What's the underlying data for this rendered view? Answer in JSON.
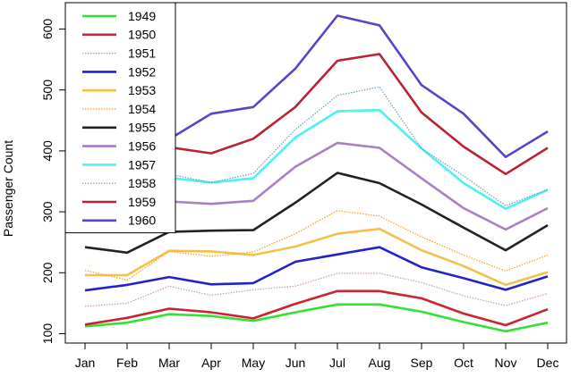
{
  "chart_data": {
    "type": "line",
    "title": "",
    "xlabel": "",
    "ylabel": "Passenger Count",
    "categories": [
      "Jan",
      "Feb",
      "Mar",
      "Apr",
      "May",
      "Jun",
      "Jul",
      "Aug",
      "Sep",
      "Oct",
      "Nov",
      "Dec"
    ],
    "y_ticks": [
      100,
      200,
      300,
      400,
      500,
      600
    ],
    "ylim": [
      95,
      625
    ],
    "grid": false,
    "legend_position": "top-left",
    "series": [
      {
        "name": "1949",
        "color": "#33e033",
        "style": "solid",
        "values": [
          112,
          118,
          132,
          129,
          121,
          135,
          148,
          148,
          136,
          119,
          104,
          118
        ]
      },
      {
        "name": "1950",
        "color": "#cc2233",
        "style": "solid",
        "values": [
          115,
          126,
          141,
          135,
          125,
          149,
          170,
          170,
          158,
          133,
          114,
          140
        ]
      },
      {
        "name": "1951",
        "color": "#c8a08c",
        "style": "dotted",
        "values": [
          145,
          150,
          178,
          163,
          172,
          178,
          199,
          199,
          184,
          162,
          146,
          166
        ]
      },
      {
        "name": "1952",
        "color": "#2222cc",
        "style": "solid",
        "values": [
          171,
          180,
          193,
          181,
          183,
          218,
          230,
          242,
          209,
          191,
          172,
          194
        ]
      },
      {
        "name": "1953",
        "color": "#f5c04a",
        "style": "solid",
        "values": [
          196,
          196,
          236,
          235,
          229,
          243,
          264,
          272,
          237,
          211,
          180,
          201
        ]
      },
      {
        "name": "1954",
        "color": "#ff9a1a",
        "style": "dotted",
        "values": [
          204,
          188,
          235,
          227,
          234,
          264,
          302,
          293,
          259,
          229,
          203,
          229
        ]
      },
      {
        "name": "1955",
        "color": "#222222",
        "style": "solid",
        "values": [
          242,
          233,
          267,
          269,
          270,
          315,
          364,
          347,
          312,
          274,
          237,
          278
        ]
      },
      {
        "name": "1956",
        "color": "#a97fc4",
        "style": "solid",
        "values": [
          284,
          277,
          317,
          313,
          318,
          374,
          413,
          405,
          355,
          306,
          271,
          306
        ]
      },
      {
        "name": "1957",
        "color": "#4ef0f0",
        "style": "solid",
        "values": [
          315,
          301,
          356,
          348,
          355,
          422,
          465,
          467,
          404,
          347,
          305,
          336
        ]
      },
      {
        "name": "1958",
        "color": "#6a9fb5",
        "style": "dotted",
        "values": [
          340,
          318,
          362,
          348,
          363,
          435,
          491,
          505,
          404,
          359,
          310,
          337
        ]
      },
      {
        "name": "1959",
        "color": "#bb2233",
        "style": "solid",
        "values": [
          360,
          342,
          406,
          396,
          420,
          472,
          548,
          559,
          463,
          407,
          362,
          405
        ]
      },
      {
        "name": "1960",
        "color": "#5544cc",
        "style": "solid",
        "values": [
          417,
          391,
          419,
          461,
          472,
          535,
          622,
          606,
          508,
          461,
          390,
          432
        ]
      }
    ]
  }
}
